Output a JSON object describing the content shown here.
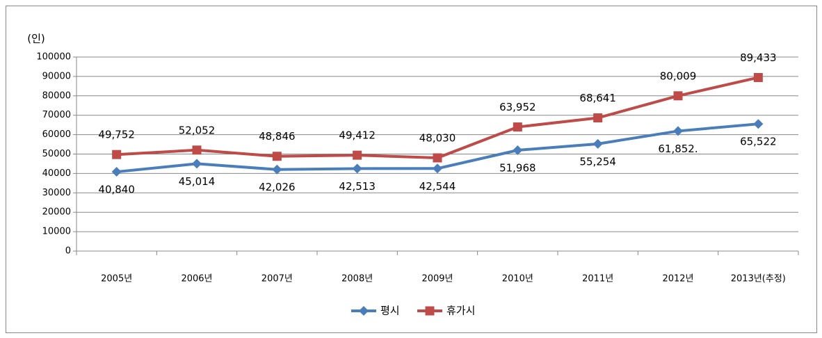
{
  "chart_data": {
    "type": "line",
    "y_label": "(인)",
    "categories": [
      "2005년",
      "2006년",
      "2007년",
      "2008년",
      "2009년",
      "2010년",
      "2011년",
      "2012년",
      "2013년(추정)"
    ],
    "series": [
      {
        "name": "평시",
        "color": "#4a7ebb",
        "marker": "diamond",
        "values": [
          40840,
          45014,
          42026,
          42513,
          42544,
          51968,
          55254,
          61852,
          65522
        ],
        "value_labels": [
          "40,840",
          "45,014",
          "42,026",
          "42,513",
          "42,544",
          "51,968",
          "55,254",
          "61,852.",
          "65,522"
        ]
      },
      {
        "name": "휴가시",
        "color": "#be4b48",
        "marker": "square",
        "values": [
          49752,
          52052,
          48846,
          49412,
          48030,
          63952,
          68641,
          80009,
          89433
        ],
        "value_labels": [
          "49,752",
          "52,052",
          "48,846",
          "49,412",
          "48,030",
          "63,952",
          "68,641",
          "80,009",
          "89,433"
        ]
      }
    ],
    "ylim": [
      0,
      100000
    ],
    "yticks": [
      0,
      10000,
      20000,
      30000,
      40000,
      50000,
      60000,
      70000,
      80000,
      90000,
      100000
    ],
    "grid": true,
    "legend": "bottom"
  }
}
